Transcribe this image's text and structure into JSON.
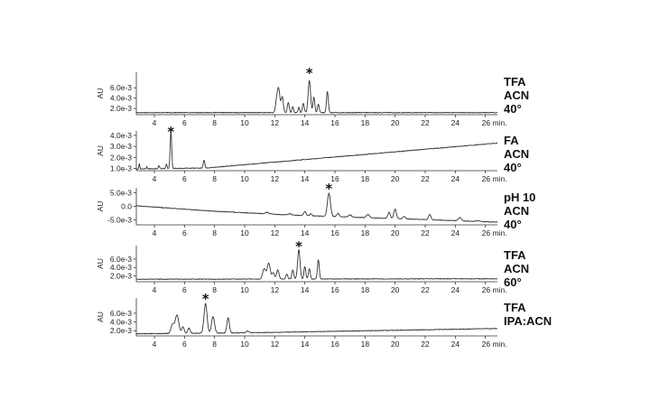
{
  "chart_data": [
    {
      "type": "line",
      "ylabel": "AU",
      "yticks": [
        "6.0e-3",
        "4.0e-3",
        "2.0e-3"
      ],
      "ytick_values": [
        0.006,
        0.004,
        0.002
      ],
      "ylim": [
        0.0008,
        0.009
      ],
      "xlim": [
        2.8,
        26.8
      ],
      "xticks": [
        "4",
        "6",
        "8",
        "10",
        "12",
        "14",
        "16",
        "18",
        "20",
        "22",
        "24",
        "26 min."
      ],
      "xtick_values": [
        4,
        6,
        8,
        10,
        12,
        14,
        16,
        18,
        20,
        22,
        24,
        26
      ],
      "conditions": [
        "TFA",
        "ACN",
        "40°"
      ],
      "star_x": 14.3,
      "baseline": [
        [
          2.8,
          0.0012
        ],
        [
          26.8,
          0.0012
        ]
      ],
      "peaks": [
        [
          12.1,
          0.0015,
          0.06
        ],
        [
          12.25,
          0.0048,
          0.09
        ],
        [
          12.5,
          0.003,
          0.07
        ],
        [
          12.9,
          0.002,
          0.06
        ],
        [
          13.2,
          0.0012,
          0.05
        ],
        [
          13.6,
          0.001,
          0.05
        ],
        [
          13.9,
          0.0018,
          0.06
        ],
        [
          14.3,
          0.0062,
          0.08
        ],
        [
          14.6,
          0.003,
          0.06
        ],
        [
          14.9,
          0.0016,
          0.06
        ],
        [
          15.5,
          0.0041,
          0.06
        ]
      ]
    },
    {
      "type": "line",
      "ylabel": "AU",
      "yticks": [
        "4.0e-3",
        "3.0e-3",
        "2.0e-3",
        "1.0e-3"
      ],
      "ytick_values": [
        0.004,
        0.003,
        0.002,
        0.001
      ],
      "ylim": [
        0.0008,
        0.0044
      ],
      "xlim": [
        2.8,
        26.8
      ],
      "xticks": [
        "4",
        "6",
        "8",
        "10",
        "12",
        "14",
        "16",
        "18",
        "20",
        "22",
        "24",
        "26 min."
      ],
      "xtick_values": [
        4,
        6,
        8,
        10,
        12,
        14,
        16,
        18,
        20,
        22,
        24,
        26
      ],
      "conditions": [
        "FA",
        "ACN",
        "40°"
      ],
      "star_x": 5.1,
      "baseline": [
        [
          2.8,
          0.00095
        ],
        [
          7.5,
          0.00105
        ],
        [
          26.8,
          0.0033
        ]
      ],
      "peaks": [
        [
          3.0,
          0.0005,
          0.03
        ],
        [
          3.5,
          0.0002,
          0.03
        ],
        [
          4.3,
          0.0003,
          0.04
        ],
        [
          4.8,
          0.0004,
          0.04
        ],
        [
          5.1,
          0.0034,
          0.05
        ],
        [
          7.3,
          0.0007,
          0.05
        ]
      ]
    },
    {
      "type": "line",
      "ylabel": "AU",
      "yticks": [
        "5.0e-3",
        "0.0",
        "-5.0e-3"
      ],
      "ytick_values": [
        0.005,
        0.0,
        -0.005
      ],
      "ylim": [
        -0.0068,
        0.0068
      ],
      "xlim": [
        2.8,
        26.8
      ],
      "xticks": [
        "4",
        "6",
        "8",
        "10",
        "12",
        "14",
        "16",
        "18",
        "20",
        "22",
        "24",
        "26 min."
      ],
      "xtick_values": [
        4,
        6,
        8,
        10,
        12,
        14,
        16,
        18,
        20,
        22,
        24,
        26
      ],
      "conditions": [
        "pH 10",
        "ACN",
        "40°"
      ],
      "star_x": 15.6,
      "baseline": [
        [
          2.8,
          0.0002
        ],
        [
          8.0,
          -0.0018
        ],
        [
          13.0,
          -0.0032
        ],
        [
          20.0,
          -0.0045
        ],
        [
          26.8,
          -0.0058
        ]
      ],
      "peaks": [
        [
          11.5,
          0.0006,
          0.1
        ],
        [
          13.0,
          0.0005,
          0.1
        ],
        [
          14.0,
          0.0015,
          0.08
        ],
        [
          14.4,
          0.0008,
          0.06
        ],
        [
          15.6,
          0.0085,
          0.1
        ],
        [
          16.2,
          0.0012,
          0.08
        ],
        [
          17.0,
          0.0008,
          0.1
        ],
        [
          18.2,
          0.0012,
          0.1
        ],
        [
          19.6,
          0.0022,
          0.08
        ],
        [
          20.0,
          0.0036,
          0.08
        ],
        [
          20.6,
          0.001,
          0.08
        ],
        [
          22.3,
          0.002,
          0.08
        ],
        [
          24.3,
          0.0012,
          0.1
        ],
        [
          25.5,
          0.0003,
          0.1
        ]
      ]
    },
    {
      "type": "line",
      "ylabel": "AU",
      "yticks": [
        "6.0e-3",
        "4.0e-3",
        "2.0e-3"
      ],
      "ytick_values": [
        0.006,
        0.004,
        0.002
      ],
      "ylim": [
        0.0006,
        0.0092
      ],
      "xlim": [
        2.8,
        26.8
      ],
      "xticks": [
        "4",
        "6",
        "8",
        "10",
        "12",
        "14",
        "16",
        "18",
        "20",
        "22",
        "24",
        "26 min."
      ],
      "xtick_values": [
        4,
        6,
        8,
        10,
        12,
        14,
        16,
        18,
        20,
        22,
        24,
        26
      ],
      "conditions": [
        "TFA",
        "ACN",
        "60°"
      ],
      "star_x": 13.6,
      "baseline": [
        [
          2.8,
          0.0012
        ],
        [
          26.8,
          0.0013
        ]
      ],
      "peaks": [
        [
          11.3,
          0.0025,
          0.1
        ],
        [
          11.6,
          0.0038,
          0.1
        ],
        [
          11.9,
          0.0015,
          0.08
        ],
        [
          12.2,
          0.0022,
          0.08
        ],
        [
          12.8,
          0.0012,
          0.06
        ],
        [
          13.2,
          0.0022,
          0.06
        ],
        [
          13.6,
          0.007,
          0.08
        ],
        [
          14.0,
          0.003,
          0.06
        ],
        [
          14.3,
          0.0025,
          0.06
        ],
        [
          14.9,
          0.0046,
          0.06
        ]
      ]
    },
    {
      "type": "line",
      "ylabel": "AU",
      "yticks": [
        "6.0e-3",
        "4.0e-3",
        "2.0e-3"
      ],
      "ytick_values": [
        0.006,
        0.004,
        0.002
      ],
      "ylim": [
        0.0008,
        0.0095
      ],
      "xlim": [
        2.8,
        26.8
      ],
      "xticks": [
        "4",
        "6",
        "8",
        "10",
        "12",
        "14",
        "16",
        "18",
        "20",
        "22",
        "24",
        "26 min."
      ],
      "xtick_values": [
        4,
        6,
        8,
        10,
        12,
        14,
        16,
        18,
        20,
        22,
        24,
        26
      ],
      "conditions": [
        "TFA",
        "IPA:ACN"
      ],
      "star_x": 7.4,
      "baseline": [
        [
          2.8,
          0.0013
        ],
        [
          10.0,
          0.0015
        ],
        [
          26.8,
          0.0025
        ]
      ],
      "peaks": [
        [
          5.2,
          0.002,
          0.1
        ],
        [
          5.5,
          0.0042,
          0.12
        ],
        [
          5.9,
          0.0015,
          0.08
        ],
        [
          6.3,
          0.0012,
          0.08
        ],
        [
          7.4,
          0.0068,
          0.1
        ],
        [
          7.9,
          0.0038,
          0.1
        ],
        [
          8.9,
          0.0035,
          0.08
        ],
        [
          10.2,
          0.0004,
          0.1
        ]
      ]
    }
  ]
}
